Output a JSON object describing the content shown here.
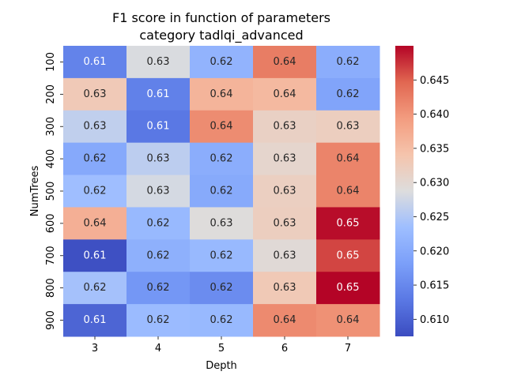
{
  "chart_data": {
    "type": "heatmap",
    "title": "F1 score in function of parameters",
    "subtitle": "category tadlqi_advanced",
    "xlabel": "Depth",
    "ylabel": "NumTrees",
    "x_categories": [
      "3",
      "4",
      "5",
      "6",
      "7"
    ],
    "y_categories": [
      "100",
      "200",
      "300",
      "400",
      "500",
      "600",
      "700",
      "800",
      "900"
    ],
    "values": [
      [
        0.6143,
        0.6284,
        0.6216,
        0.6425,
        0.6206
      ],
      [
        0.6329,
        0.614,
        0.6362,
        0.6355,
        0.619
      ],
      [
        0.6263,
        0.6128,
        0.641,
        0.6315,
        0.632
      ],
      [
        0.6198,
        0.626,
        0.6205,
        0.6305,
        0.6418
      ],
      [
        0.6235,
        0.628,
        0.62,
        0.6318,
        0.6418
      ],
      [
        0.6368,
        0.6225,
        0.629,
        0.632,
        0.6495
      ],
      [
        0.608,
        0.621,
        0.6225,
        0.6295,
        0.6465
      ],
      [
        0.624,
        0.617,
        0.6155,
        0.633,
        0.65
      ],
      [
        0.6105,
        0.623,
        0.6225,
        0.6412,
        0.6405
      ]
    ],
    "cell_labels": [
      [
        "0.61",
        "0.63",
        "0.62",
        "0.64",
        "0.62"
      ],
      [
        "0.63",
        "0.61",
        "0.64",
        "0.64",
        "0.62"
      ],
      [
        "0.63",
        "0.61",
        "0.64",
        "0.63",
        "0.63"
      ],
      [
        "0.62",
        "0.63",
        "0.62",
        "0.63",
        "0.64"
      ],
      [
        "0.62",
        "0.63",
        "0.62",
        "0.63",
        "0.64"
      ],
      [
        "0.64",
        "0.62",
        "0.63",
        "0.63",
        "0.65"
      ],
      [
        "0.61",
        "0.62",
        "0.62",
        "0.63",
        "0.65"
      ],
      [
        "0.62",
        "0.62",
        "0.62",
        "0.63",
        "0.65"
      ],
      [
        "0.61",
        "0.62",
        "0.62",
        "0.64",
        "0.64"
      ]
    ],
    "vmin": 0.6075,
    "vmax": 0.65,
    "colormap": "coolwarm",
    "colorbar_ticks": [
      "0.610",
      "0.615",
      "0.620",
      "0.625",
      "0.630",
      "0.635",
      "0.640",
      "0.645"
    ],
    "colorbar_tick_values": [
      0.61,
      0.615,
      0.62,
      0.625,
      0.63,
      0.635,
      0.64,
      0.645
    ],
    "grid": false,
    "legend": "colorbar-right"
  }
}
